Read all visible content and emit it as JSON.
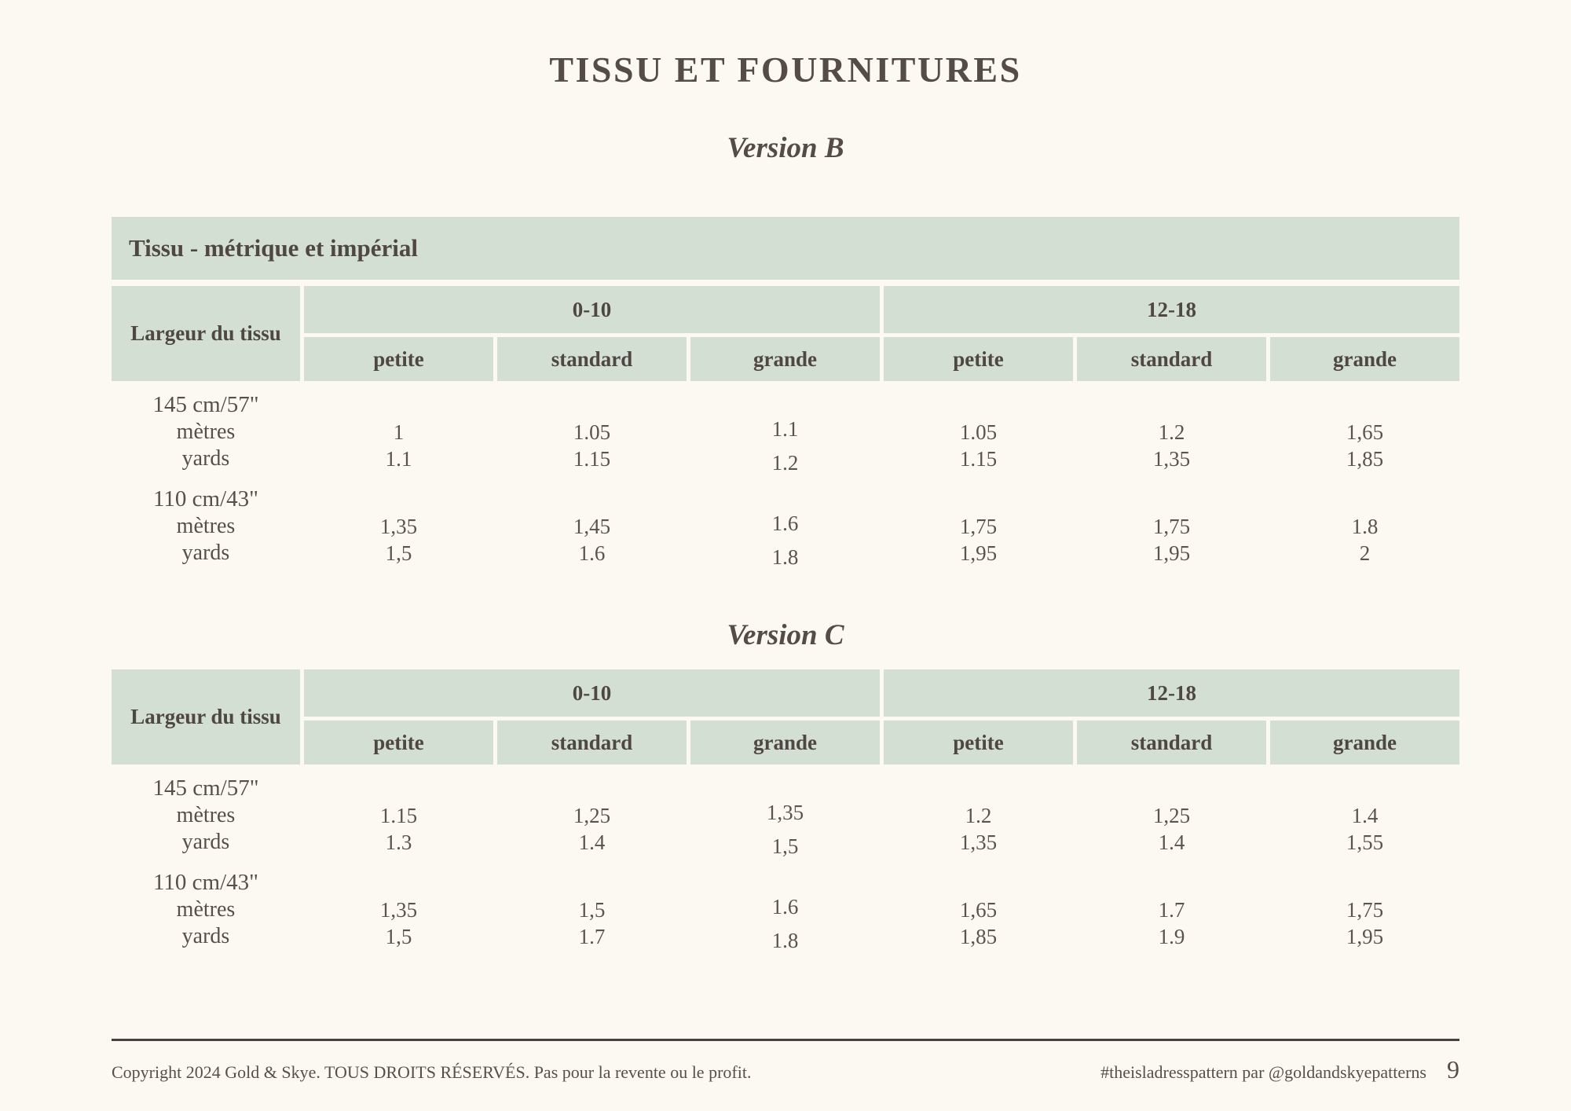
{
  "page": {
    "title": "TISSU ET FOURNITURES",
    "colors": {
      "background": "#fbf9f2",
      "table_header_green": "#d4dfd4",
      "text": "#57504a",
      "footer_rule": "#48403c"
    },
    "footer": {
      "left": "Copyright 2024 Gold & Skye. TOUS DROITS RÉSERVÉS. Pas pour la revente ou le profit.",
      "right": "#theisladresspattern par @goldandskyepatterns",
      "page_number": "9"
    }
  },
  "tables": [
    {
      "version_label": "Version B",
      "banner": "Tissu - métrique et impérial",
      "row_header": "Largeur du tissu",
      "size_groups": [
        "0-10",
        "12-18"
      ],
      "fit_columns": [
        "petite",
        "standard",
        "grande",
        "petite",
        "standard",
        "grande"
      ],
      "sections": [
        {
          "width_label": "145 cm/57\"",
          "rows": [
            {
              "label": "mètres",
              "values": [
                "1",
                "1.05",
                "1.1",
                "1.05",
                "1.2",
                "1,65"
              ]
            },
            {
              "label": "yards",
              "values": [
                "1.1",
                "1.15",
                "1.2",
                "1.15",
                "1,35",
                "1,85"
              ]
            }
          ]
        },
        {
          "width_label": "110 cm/43\"",
          "rows": [
            {
              "label": "mètres",
              "values": [
                "1,35",
                "1,45",
                "1.6",
                "1,75",
                "1,75",
                "1.8"
              ]
            },
            {
              "label": "yards",
              "values": [
                "1,5",
                "1.6",
                "1.8",
                "1,95",
                "1,95",
                "2"
              ]
            }
          ]
        }
      ]
    },
    {
      "version_label": "Version C",
      "row_header": "Largeur du tissu",
      "size_groups": [
        "0-10",
        "12-18"
      ],
      "fit_columns": [
        "petite",
        "standard",
        "grande",
        "petite",
        "standard",
        "grande"
      ],
      "sections": [
        {
          "width_label": "145 cm/57\"",
          "rows": [
            {
              "label": "mètres",
              "values": [
                "1.15",
                "1,25",
                "1,35",
                "1.2",
                "1,25",
                "1.4"
              ]
            },
            {
              "label": "yards",
              "values": [
                "1.3",
                "1.4",
                "1,5",
                "1,35",
                "1.4",
                "1,55"
              ]
            }
          ]
        },
        {
          "width_label": "110 cm/43\"",
          "rows": [
            {
              "label": "mètres",
              "values": [
                "1,35",
                "1,5",
                "1.6",
                "1,65",
                "1.7",
                "1,75"
              ]
            },
            {
              "label": "yards",
              "values": [
                "1,5",
                "1.7",
                "1.8",
                "1,85",
                "1.9",
                "1,95"
              ]
            }
          ]
        }
      ]
    }
  ]
}
